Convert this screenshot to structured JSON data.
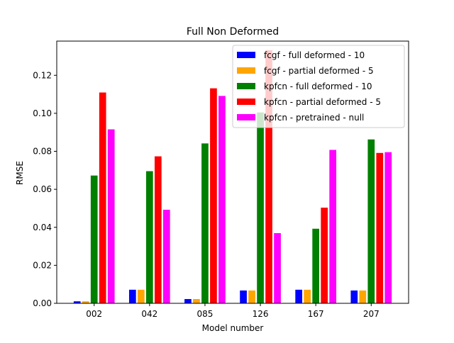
{
  "chart_data": {
    "type": "bar",
    "title": "Full Non Deformed",
    "xlabel": "Model number",
    "ylabel": "RMSE",
    "categories": [
      "002",
      "042",
      "085",
      "126",
      "167",
      "207"
    ],
    "ylim": [
      0,
      0.138
    ],
    "yticks": [
      0.0,
      0.02,
      0.04,
      0.06,
      0.08,
      0.1,
      0.12
    ],
    "ytick_labels": [
      "0.00",
      "0.02",
      "0.04",
      "0.06",
      "0.08",
      "0.10",
      "0.12"
    ],
    "grid": false,
    "legend_position": "top-right",
    "series": [
      {
        "name": "fcgf - full deformed - 10",
        "color": "#0000ff",
        "values": [
          0.0012,
          0.0073,
          0.0024,
          0.0069,
          0.0073,
          0.0069
        ]
      },
      {
        "name": "fcgf - partial deformed - 5",
        "color": "#ffa500",
        "values": [
          0.0012,
          0.0073,
          0.0024,
          0.0069,
          0.0073,
          0.0069
        ]
      },
      {
        "name": "kpfcn - full deformed - 10",
        "color": "#008000",
        "values": [
          0.0674,
          0.0697,
          0.0843,
          0.1006,
          0.0394,
          0.0864
        ]
      },
      {
        "name": "kpfcn - partial deformed - 5",
        "color": "#ff0000",
        "values": [
          0.1111,
          0.0775,
          0.1133,
          0.1333,
          0.0505,
          0.0793
        ]
      },
      {
        "name": "kpfcn - pretrained - null",
        "color": "#ff00ff",
        "values": [
          0.0917,
          0.0494,
          0.1093,
          0.0371,
          0.0809,
          0.0797
        ]
      }
    ]
  }
}
